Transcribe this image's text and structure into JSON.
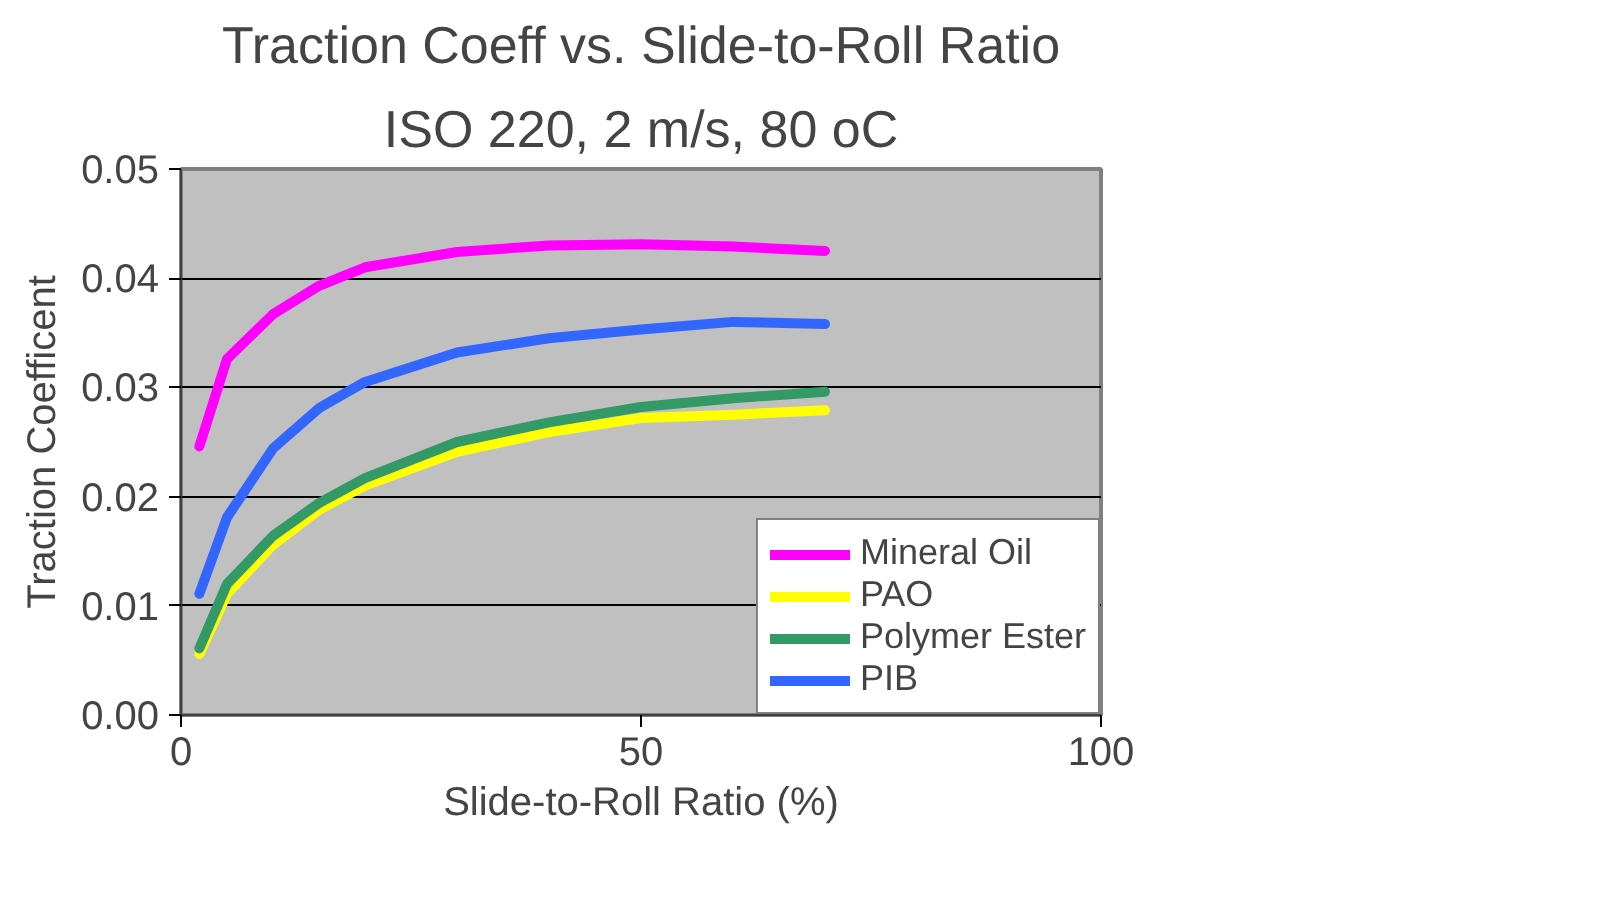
{
  "chart_data": {
    "type": "line",
    "title": "Traction Coeff vs. Slide-to-Roll Ratio",
    "subtitle": "ISO 220, 2 m/s, 80 oC",
    "xlabel": "Slide-to-Roll Ratio (%)",
    "ylabel": "Traction Coefficent",
    "x": [
      2,
      5,
      10,
      15,
      20,
      30,
      40,
      50,
      60,
      70
    ],
    "series": [
      {
        "name": "Mineral Oil",
        "color": "#ff00ff",
        "values": [
          0.0246,
          0.0326,
          0.0367,
          0.0393,
          0.041,
          0.0424,
          0.043,
          0.0431,
          0.0429,
          0.0425
        ]
      },
      {
        "name": "PAO",
        "color": "#ffff00",
        "values": [
          0.0056,
          0.0111,
          0.0156,
          0.0188,
          0.021,
          0.0241,
          0.0259,
          0.0272,
          0.0275,
          0.0279
        ]
      },
      {
        "name": "Polymer Ester",
        "color": "#339966",
        "values": [
          0.0061,
          0.012,
          0.0164,
          0.0194,
          0.0217,
          0.025,
          0.0268,
          0.0282,
          0.029,
          0.0296
        ]
      },
      {
        "name": "PIB",
        "color": "#3366ff",
        "values": [
          0.0111,
          0.0181,
          0.0244,
          0.0281,
          0.0305,
          0.0332,
          0.0345,
          0.0353,
          0.036,
          0.0358
        ]
      }
    ],
    "xlim": [
      0,
      100
    ],
    "xticks": [
      0,
      50,
      100
    ],
    "ylim": [
      0,
      0.05
    ],
    "yticks": [
      {
        "value": 0,
        "label": "0.00"
      },
      0.01,
      0.02,
      0.03,
      0.04,
      0.05
    ],
    "grid": "y",
    "legend": "bottom right",
    "marker": "none",
    "line_style": "solid"
  }
}
